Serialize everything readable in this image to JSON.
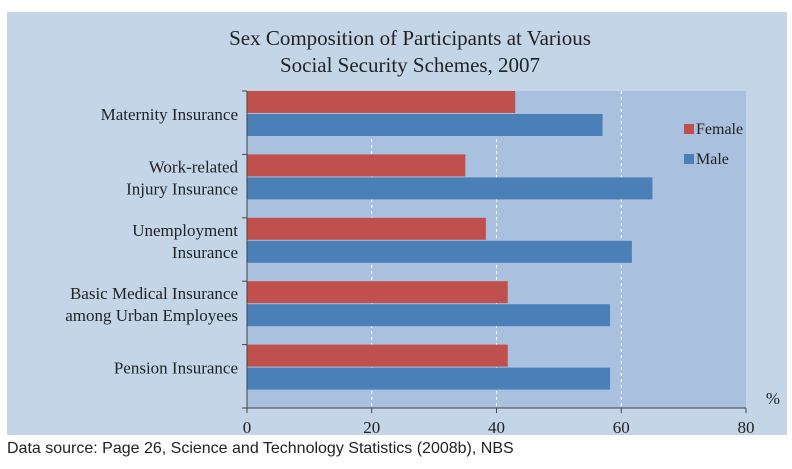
{
  "page": {
    "header_fragment": "",
    "source_note": "Data source: Page 26, Science and Technology Statistics (2008b), NBS"
  },
  "colors": {
    "female": "#c0504d",
    "male": "#4a7fb8",
    "plot_background": "#a9c1de",
    "panel_background": "#c5d5e8",
    "header_text": "#2b8fd0"
  },
  "chart_data": {
    "type": "bar",
    "orientation": "horizontal",
    "title": "Sex Composition of Participants at Various Social Security Schemes, 2007",
    "title_lines": [
      "Sex Composition of Participants at Various",
      "Social Security Schemes, 2007"
    ],
    "xlabel": "%",
    "ylabel": "",
    "xlim": [
      0,
      80
    ],
    "xticks": [
      0,
      20,
      40,
      60,
      80
    ],
    "grid": "vertical dashed",
    "legend": "top-right",
    "categories": [
      "Maternity Insurance",
      "Work-related Injury Insurance",
      "Unemployment Insurance",
      "Basic Medical Insurance among Urban Employees",
      "Pension Insurance"
    ],
    "category_lines": [
      [
        "Maternity Insurance"
      ],
      [
        "Work-related",
        "Injury Insurance"
      ],
      [
        "Unemployment",
        "Insurance"
      ],
      [
        "Basic Medical Insurance",
        "among Urban Employees"
      ],
      [
        "Pension Insurance"
      ]
    ],
    "series": [
      {
        "name": "Female",
        "values": [
          43,
          35,
          38.3,
          41.8,
          41.8
        ]
      },
      {
        "name": "Male",
        "values": [
          57,
          65,
          61.7,
          58.2,
          58.2
        ]
      }
    ]
  }
}
